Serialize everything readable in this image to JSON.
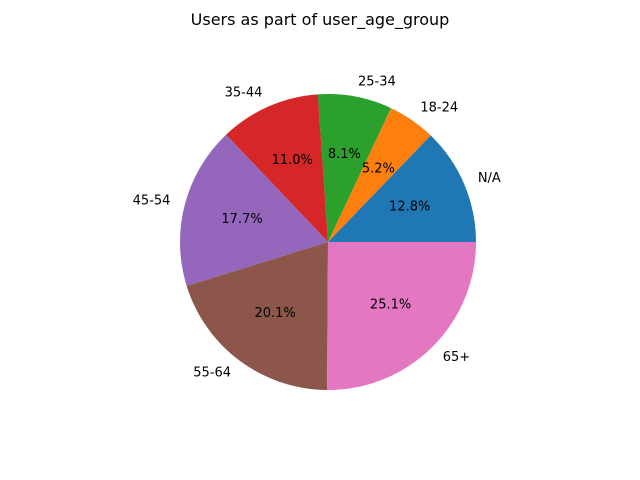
{
  "chart_data": {
    "type": "pie",
    "title": "Users as part of user_age_group",
    "categories": [
      "N/A",
      "18-24",
      "25-34",
      "35-44",
      "45-54",
      "55-64",
      "65+"
    ],
    "values": [
      12.8,
      5.2,
      8.1,
      11.0,
      17.7,
      20.1,
      25.1
    ],
    "value_labels": [
      "12.8%",
      "5.2%",
      "8.1%",
      "11.0%",
      "17.7%",
      "20.1%",
      "25.1%"
    ],
    "colors": [
      "#1f77b4",
      "#ff7f0e",
      "#2ca02c",
      "#d62728",
      "#9467bd",
      "#8c564b",
      "#e377c2"
    ],
    "start_angle_deg": 0,
    "direction": "counterclockwise",
    "legend": "none"
  }
}
